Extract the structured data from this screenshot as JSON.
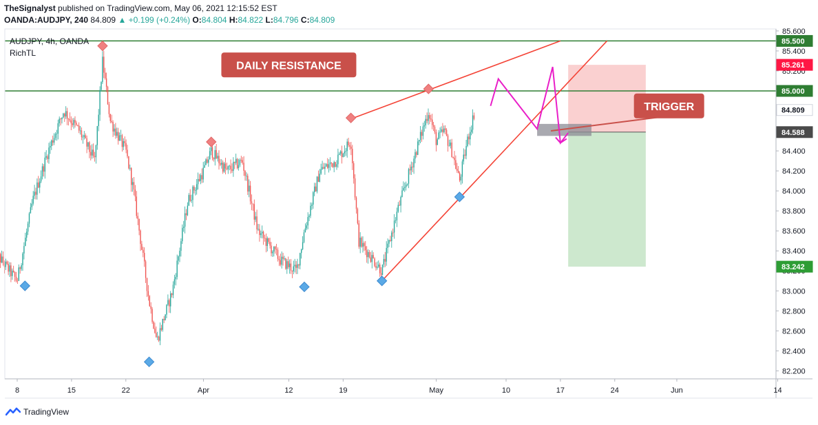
{
  "header": {
    "author": "TheSignalyst",
    "published": "published on TradingView.com, May 06, 2021 12:15:52 EST",
    "symbol": "OANDA:AUDJPY, 240",
    "last": "84.809",
    "arrow": "▲",
    "change": "+0.199 (+0.24%)",
    "o_label": "O:",
    "o": "84.804",
    "h_label": "H:",
    "h": "84.822",
    "l_label": "L:",
    "l": "84.796",
    "c_label": "C:",
    "c": "84.809"
  },
  "legend": {
    "symbol_line": "AUDJPY, 4h, OANDA",
    "indicator": "RichTL"
  },
  "footer": {
    "brand": "TradingView",
    "logo_icon": "tradingview-logo-icon"
  },
  "colors": {
    "up": "#26a69a",
    "down": "#ef5350",
    "resistance": "#2e7d32",
    "trend": "#f44336",
    "projection": "#e91ec8",
    "stop_zone": "#f9c4c4",
    "target_zone": "#c8e6c9",
    "label_bg": "#c9504a",
    "pivot_high": "#f08080",
    "pivot_low": "#5aa9e6"
  },
  "chart_data": {
    "type": "candlestick",
    "symbol": "AUDJPY",
    "timeframe": "4h",
    "ylim": [
      82.12,
      85.62
    ],
    "x_ticks": [
      {
        "date": "2021-03-08",
        "label": "8"
      },
      {
        "date": "2021-03-15",
        "label": "15"
      },
      {
        "date": "2021-03-22",
        "label": "22"
      },
      {
        "date": "2021-04-01",
        "label": "Apr"
      },
      {
        "date": "2021-04-12",
        "label": "12"
      },
      {
        "date": "2021-04-19",
        "label": "19"
      },
      {
        "date": "2021-05-01",
        "label": "May"
      },
      {
        "date": "2021-05-10",
        "label": "10"
      },
      {
        "date": "2021-05-17",
        "label": "17"
      },
      {
        "date": "2021-05-24",
        "label": "24"
      },
      {
        "date": "2021-06-01",
        "label": "Jun"
      },
      {
        "date": "2021-06-14",
        "label": "14"
      }
    ],
    "y_ticks": [
      "85.600",
      "85.400",
      "85.200",
      "85.000",
      "84.800",
      "84.600",
      "84.400",
      "84.200",
      "84.000",
      "83.800",
      "83.600",
      "83.400",
      "83.200",
      "83.000",
      "82.800",
      "82.600",
      "82.400",
      "82.200"
    ],
    "price_path": [
      [
        "2021-03-05",
        83.4
      ],
      [
        "2021-03-08",
        83.1
      ],
      [
        "2021-03-10",
        83.9
      ],
      [
        "2021-03-12",
        84.4
      ],
      [
        "2021-03-14",
        84.8
      ],
      [
        "2021-03-16",
        84.6
      ],
      [
        "2021-03-18",
        84.3
      ],
      [
        "2021-03-19",
        85.3
      ],
      [
        "2021-03-20",
        84.7
      ],
      [
        "2021-03-22",
        84.4
      ],
      [
        "2021-03-23",
        84.0
      ],
      [
        "2021-03-25",
        82.9
      ],
      [
        "2021-03-26",
        82.5
      ],
      [
        "2021-03-28",
        83.0
      ],
      [
        "2021-03-30",
        83.9
      ],
      [
        "2021-04-01",
        84.2
      ],
      [
        "2021-04-02",
        84.4
      ],
      [
        "2021-04-04",
        84.2
      ],
      [
        "2021-04-06",
        84.3
      ],
      [
        "2021-04-08",
        83.6
      ],
      [
        "2021-04-11",
        83.3
      ],
      [
        "2021-04-13",
        83.2
      ],
      [
        "2021-04-14",
        83.6
      ],
      [
        "2021-04-16",
        84.2
      ],
      [
        "2021-04-18",
        84.3
      ],
      [
        "2021-04-20",
        84.5
      ],
      [
        "2021-04-21",
        83.5
      ],
      [
        "2021-04-23",
        83.3
      ],
      [
        "2021-04-24",
        83.2
      ],
      [
        "2021-04-26",
        83.8
      ],
      [
        "2021-04-28",
        84.3
      ],
      [
        "2021-04-30",
        84.8
      ],
      [
        "2021-05-01",
        84.5
      ],
      [
        "2021-05-02",
        84.6
      ],
      [
        "2021-05-03",
        84.4
      ],
      [
        "2021-05-04",
        84.1
      ],
      [
        "2021-05-05",
        84.5
      ],
      [
        "2021-05-06",
        84.81
      ]
    ],
    "horizontal_levels": [
      {
        "name": "daily-resistance-upper",
        "value": 85.5,
        "label": "85.500"
      },
      {
        "name": "daily-resistance-lower",
        "value": 85.0,
        "label": "85.000"
      }
    ],
    "price_labels": [
      {
        "value": 85.5,
        "text": "85.500",
        "color": "#2e7d32"
      },
      {
        "value": 85.261,
        "text": "85.261",
        "color": "#ff1744"
      },
      {
        "value": 85.0,
        "text": "85.000",
        "color": "#2e7d32"
      },
      {
        "value": 84.809,
        "text": "84.809",
        "color": "#ffffff"
      },
      {
        "value": 84.588,
        "text": "84.588",
        "color": "#4a4a4a"
      },
      {
        "value": 83.242,
        "text": "83.242",
        "color": "#2e9d35"
      }
    ],
    "trendlines": [
      {
        "name": "upper-wedge-line",
        "from": [
          "2021-04-20",
          84.72
        ],
        "to": [
          "2021-05-17",
          85.5
        ]
      },
      {
        "name": "lower-wedge-line",
        "from": [
          "2021-04-24",
          83.1
        ],
        "to": [
          "2021-05-23",
          85.5
        ]
      }
    ],
    "projection_path": [
      [
        "2021-05-08",
        84.85
      ],
      [
        "2021-05-09",
        85.12
      ],
      [
        "2021-05-14",
        84.62
      ],
      [
        "2021-05-16",
        85.24
      ],
      [
        "2021-05-17",
        84.48
      ],
      [
        "2021-05-18",
        84.58
      ]
    ],
    "trade": {
      "entry": 84.588,
      "stop": 85.261,
      "target": 83.242,
      "from": "2021-05-18",
      "to": "2021-05-28",
      "trigger_box": {
        "from": "2021-05-14",
        "to": "2021-05-21",
        "low": 84.55,
        "high": 84.67
      }
    },
    "pivots": [
      {
        "type": "high",
        "date": "2021-03-19",
        "value": 85.45
      },
      {
        "type": "high",
        "date": "2021-04-02",
        "value": 84.49
      },
      {
        "type": "high",
        "date": "2021-04-20",
        "value": 84.73
      },
      {
        "type": "high",
        "date": "2021-04-30",
        "value": 85.02
      },
      {
        "type": "low",
        "date": "2021-03-09",
        "value": 83.05
      },
      {
        "type": "low",
        "date": "2021-03-25",
        "value": 82.29
      },
      {
        "type": "low",
        "date": "2021-04-14",
        "value": 83.04
      },
      {
        "type": "low",
        "date": "2021-04-24",
        "value": 83.1
      },
      {
        "type": "low",
        "date": "2021-05-04",
        "value": 83.94
      }
    ],
    "annotations": [
      {
        "name": "daily-resistance-label",
        "text": "DAILY RESISTANCE",
        "date": "2021-04-12",
        "value": 85.26
      },
      {
        "name": "trigger-label",
        "text": "TRIGGER",
        "date": "2021-05-31",
        "value": 84.85
      }
    ]
  }
}
